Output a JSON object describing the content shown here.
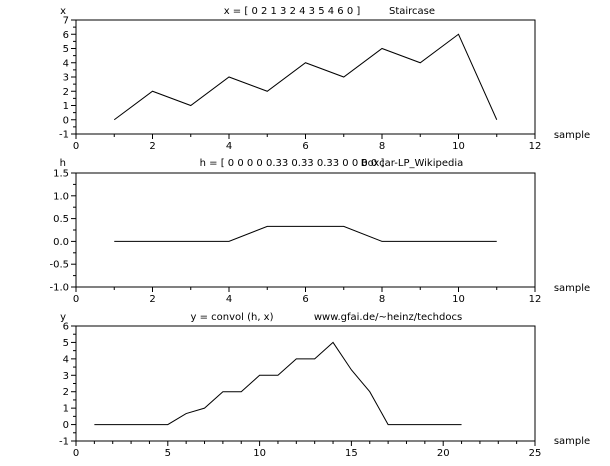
{
  "chart_data": [
    {
      "type": "line",
      "title": "x = [ 0 2 1 3 2 4 3 5 4 6 0 ]",
      "subtitle": "Staircase",
      "ylabel": "x",
      "xlabel": "sample",
      "xlim": [
        0,
        12
      ],
      "ylim": [
        -1,
        7
      ],
      "xticks": [
        0,
        2,
        4,
        6,
        8,
        10,
        12
      ],
      "yticks": [
        -1,
        0,
        1,
        2,
        3,
        4,
        5,
        6,
        7
      ],
      "ytick_labels": [
        "-1",
        "0",
        "1",
        "2",
        "3",
        "4",
        "5",
        "6",
        "7"
      ],
      "x": [
        1,
        2,
        3,
        4,
        5,
        6,
        7,
        8,
        9,
        10,
        11
      ],
      "values": [
        0,
        2,
        1,
        3,
        2,
        4,
        3,
        5,
        4,
        6,
        0
      ],
      "grid": false
    },
    {
      "type": "line",
      "title": "h = [ 0 0 0 0 0.33 0.33 0.33 0 0 0 0 ]",
      "subtitle": "Boxcar-LP_Wikipedia",
      "ylabel": "h",
      "xlabel": "sample",
      "xlim": [
        0,
        12
      ],
      "ylim": [
        -1,
        1.5
      ],
      "xticks": [
        0,
        2,
        4,
        6,
        8,
        10,
        12
      ],
      "yticks": [
        -1,
        -0.5,
        0,
        0.5,
        1,
        1.5
      ],
      "ytick_labels": [
        "-1.0",
        "-0.5",
        "0.0",
        "0.5",
        "1.0",
        "1.5"
      ],
      "x": [
        1,
        2,
        3,
        4,
        5,
        6,
        7,
        8,
        9,
        10,
        11
      ],
      "values": [
        0,
        0,
        0,
        0,
        0.33,
        0.33,
        0.33,
        0,
        0,
        0,
        0
      ],
      "grid": false
    },
    {
      "type": "line",
      "title": "y = convol (h, x)",
      "subtitle": "www.gfai.de/~heinz/techdocs",
      "ylabel": "y",
      "xlabel": "sample",
      "xlim": [
        0,
        25
      ],
      "ylim": [
        -1,
        6
      ],
      "xticks": [
        0,
        5,
        10,
        15,
        20,
        25
      ],
      "yticks": [
        -1,
        0,
        1,
        2,
        3,
        4,
        5,
        6
      ],
      "ytick_labels": [
        "-1",
        "0",
        "1",
        "2",
        "3",
        "4",
        "5",
        "6"
      ],
      "x": [
        1,
        2,
        3,
        4,
        5,
        6,
        7,
        8,
        9,
        10,
        11,
        12,
        13,
        14,
        15,
        16,
        17,
        18,
        19,
        20,
        21
      ],
      "values": [
        0,
        0,
        0,
        0,
        0,
        0.67,
        1,
        2,
        2,
        3,
        3,
        4,
        4,
        5,
        3.33,
        2,
        0,
        0,
        0,
        0,
        0
      ],
      "grid": false
    }
  ]
}
